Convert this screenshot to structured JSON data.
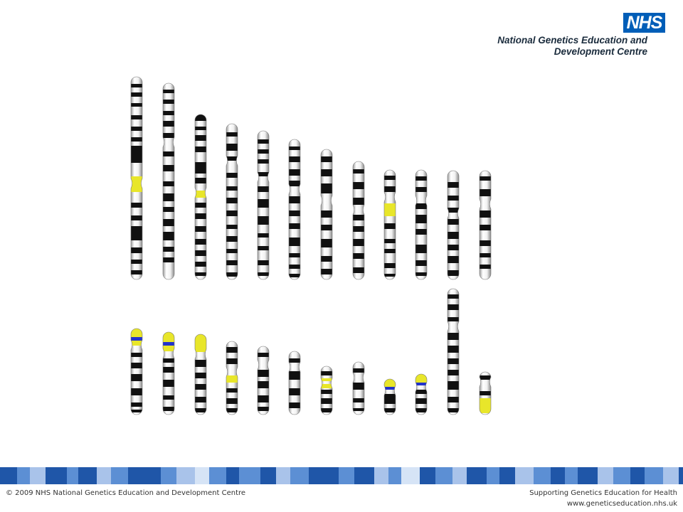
{
  "logo": {
    "badge": "NHS",
    "line1": "National Genetics Education and",
    "line2": "Development Centre",
    "badge_color": "#005EB8"
  },
  "footer": {
    "copyright": "© 2009 NHS National Genetics Education and Development Centre",
    "tagline": "Supporting Genetics Education for Health",
    "url": "www.geneticseducation.nhs.uk"
  },
  "colors": {
    "dark_band": "#111111",
    "highlight": "#E8E62A",
    "marker": "#2233CC",
    "band_blue_dark": "#1F56A8",
    "band_blue_mid": "#5C8FD4",
    "band_blue_light": "#A9C3EA"
  }
}
